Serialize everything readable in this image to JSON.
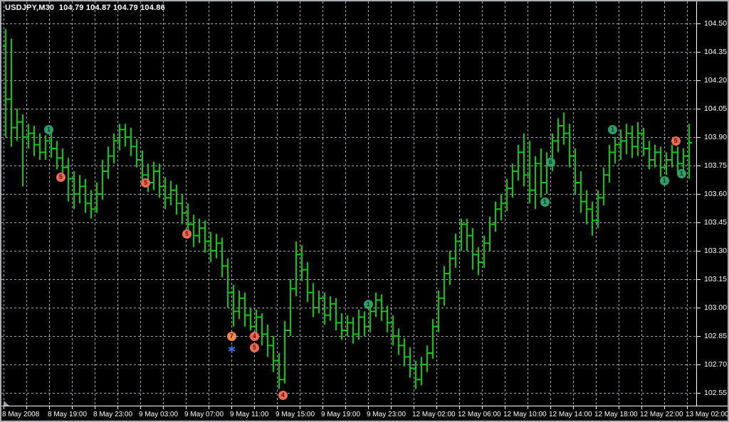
{
  "header": {
    "title": "USDJPY,M30  104.79 104.87 104.79 104.86",
    "symbol_period": "USDJPY,M30"
  },
  "colors": {
    "background": "#000000",
    "grid": "#a0a6b0",
    "bar": "#00cc00",
    "axis_line": "#ffffff",
    "axis_text": "#ffffff",
    "window_border": "#a9adb3",
    "buy_fill": "#2f9e6b",
    "buy_text": "#00371d",
    "sell_fill": "#ed6a55",
    "sell_orange_fill": "#f0884f",
    "sell_text": "#5f140b",
    "star": "#4169e1",
    "triangle": "#97a1ad"
  },
  "chart_data": {
    "type": "ohlc_bars",
    "symbol": "USDJPY",
    "period": "M30",
    "title": "USDJPY,M30",
    "current_bar_quote": {
      "open": 104.79,
      "high": 104.87,
      "low": 104.79,
      "close": 104.86
    },
    "grid": true,
    "y_axis": {
      "labels": [
        "104.50",
        "104.35",
        "104.20",
        "104.05",
        "103.90",
        "103.75",
        "103.60",
        "103.45",
        "103.30",
        "103.15",
        "103.00",
        "102.85",
        "102.70",
        "102.55"
      ],
      "max": 104.5,
      "min": 102.55,
      "step": 0.15,
      "side": "right"
    },
    "x_axis": {
      "labels": [
        "8 May 2008",
        "8 May 19:00",
        "8 May 23:00",
        "9 May 03:00",
        "9 May 07:00",
        "9 May 11:00",
        "9 May 15:00",
        "9 May 19:00",
        "9 May 23:00",
        "12 May 02:00",
        "12 May 06:00",
        "12 May 10:00",
        "12 May 14:00",
        "12 May 18:00",
        "12 May 22:00",
        "13 May 02:00"
      ],
      "side": "bottom"
    },
    "bars": [
      [
        104.38,
        104.47,
        103.9,
        104.1
      ],
      [
        104.1,
        104.42,
        103.85,
        103.95
      ],
      [
        103.95,
        104.05,
        103.88,
        103.98
      ],
      [
        103.98,
        104.02,
        103.64,
        103.9
      ],
      [
        103.9,
        103.97,
        103.84,
        103.92
      ],
      [
        103.92,
        103.96,
        103.8,
        103.86
      ],
      [
        103.86,
        103.92,
        103.78,
        103.82
      ],
      [
        103.82,
        103.91,
        103.78,
        103.88
      ],
      [
        103.88,
        103.92,
        103.79,
        103.84
      ],
      [
        103.84,
        103.88,
        103.73,
        103.79
      ],
      [
        103.79,
        103.84,
        103.67,
        103.74
      ],
      [
        103.74,
        103.79,
        103.56,
        103.68
      ],
      [
        103.68,
        103.72,
        103.52,
        103.6
      ],
      [
        103.6,
        103.7,
        103.55,
        103.64
      ],
      [
        103.64,
        103.68,
        103.5,
        103.55
      ],
      [
        103.55,
        103.62,
        103.47,
        103.52
      ],
      [
        103.52,
        103.66,
        103.5,
        103.6
      ],
      [
        103.6,
        103.78,
        103.57,
        103.72
      ],
      [
        103.72,
        103.85,
        103.68,
        103.8
      ],
      [
        103.8,
        103.92,
        103.76,
        103.88
      ],
      [
        103.88,
        103.97,
        103.83,
        103.94
      ],
      [
        103.94,
        103.97,
        103.85,
        103.9
      ],
      [
        103.9,
        103.95,
        103.8,
        103.85
      ],
      [
        103.85,
        103.89,
        103.74,
        103.78
      ],
      [
        103.78,
        103.83,
        103.66,
        103.7
      ],
      [
        103.7,
        103.76,
        103.61,
        103.66
      ],
      [
        103.66,
        103.77,
        103.62,
        103.72
      ],
      [
        103.72,
        103.76,
        103.58,
        103.64
      ],
      [
        103.64,
        103.69,
        103.52,
        103.58
      ],
      [
        103.58,
        103.67,
        103.54,
        103.62
      ],
      [
        103.62,
        103.65,
        103.49,
        103.55
      ],
      [
        103.55,
        103.6,
        103.44,
        103.5
      ],
      [
        103.5,
        103.55,
        103.38,
        103.44
      ],
      [
        103.44,
        103.49,
        103.32,
        103.38
      ],
      [
        103.38,
        103.47,
        103.34,
        103.42
      ],
      [
        103.42,
        103.46,
        103.29,
        103.35
      ],
      [
        103.35,
        103.4,
        103.24,
        103.3
      ],
      [
        103.3,
        103.39,
        103.26,
        103.34
      ],
      [
        103.34,
        103.37,
        103.16,
        103.22
      ],
      [
        103.22,
        103.26,
        103.0,
        103.08
      ],
      [
        103.08,
        103.12,
        102.9,
        102.98
      ],
      [
        102.98,
        103.09,
        102.94,
        103.05
      ],
      [
        103.05,
        103.08,
        102.9,
        102.96
      ],
      [
        102.96,
        103.0,
        102.88,
        102.9
      ],
      [
        102.9,
        102.99,
        102.86,
        102.95
      ],
      [
        102.95,
        102.97,
        102.8,
        102.86
      ],
      [
        102.86,
        102.91,
        102.74,
        102.8
      ],
      [
        102.8,
        102.85,
        102.66,
        102.72
      ],
      [
        102.72,
        102.76,
        102.57,
        102.62
      ],
      [
        102.62,
        102.93,
        102.6,
        102.88
      ],
      [
        102.88,
        103.15,
        102.85,
        103.1
      ],
      [
        103.1,
        103.35,
        103.06,
        103.28
      ],
      [
        103.28,
        103.33,
        103.14,
        103.2
      ],
      [
        103.2,
        103.24,
        103.03,
        103.08
      ],
      [
        103.08,
        103.13,
        102.95,
        103.0
      ],
      [
        103.0,
        103.09,
        102.97,
        103.05
      ],
      [
        103.05,
        103.08,
        102.91,
        102.96
      ],
      [
        102.96,
        103.06,
        102.93,
        103.02
      ],
      [
        103.02,
        103.05,
        102.88,
        102.92
      ],
      [
        102.92,
        102.97,
        102.83,
        102.88
      ],
      [
        102.88,
        102.96,
        102.85,
        102.92
      ],
      [
        102.92,
        102.95,
        102.81,
        102.86
      ],
      [
        102.86,
        102.99,
        102.83,
        102.95
      ],
      [
        102.95,
        102.98,
        102.85,
        102.9
      ],
      [
        102.9,
        103.02,
        102.87,
        102.98
      ],
      [
        102.98,
        103.08,
        102.95,
        103.04
      ],
      [
        103.04,
        103.07,
        102.93,
        102.98
      ],
      [
        102.98,
        103.01,
        102.87,
        102.92
      ],
      [
        102.92,
        102.96,
        102.8,
        102.85
      ],
      [
        102.85,
        102.89,
        102.75,
        102.8
      ],
      [
        102.8,
        102.84,
        102.69,
        102.74
      ],
      [
        102.74,
        102.79,
        102.63,
        102.68
      ],
      [
        102.68,
        102.72,
        102.57,
        102.62
      ],
      [
        102.62,
        102.74,
        102.59,
        102.7
      ],
      [
        102.7,
        102.8,
        102.66,
        102.76
      ],
      [
        102.76,
        102.94,
        102.73,
        102.9
      ],
      [
        102.9,
        103.09,
        102.87,
        103.05
      ],
      [
        103.05,
        103.22,
        103.01,
        103.18
      ],
      [
        103.18,
        103.3,
        103.12,
        103.26
      ],
      [
        103.26,
        103.39,
        103.21,
        103.35
      ],
      [
        103.35,
        103.47,
        103.3,
        103.44
      ],
      [
        103.44,
        103.47,
        103.3,
        103.38
      ],
      [
        103.38,
        103.42,
        103.2,
        103.28
      ],
      [
        103.28,
        103.32,
        103.17,
        103.24
      ],
      [
        103.24,
        103.38,
        103.21,
        103.34
      ],
      [
        103.34,
        103.48,
        103.3,
        103.44
      ],
      [
        103.44,
        103.56,
        103.4,
        103.52
      ],
      [
        103.52,
        103.6,
        103.46,
        103.55
      ],
      [
        103.55,
        103.68,
        103.51,
        103.63
      ],
      [
        103.63,
        103.76,
        103.58,
        103.72
      ],
      [
        103.72,
        103.86,
        103.67,
        103.82
      ],
      [
        103.82,
        103.92,
        103.64,
        103.7
      ],
      [
        103.7,
        103.88,
        103.55,
        103.62
      ],
      [
        103.62,
        103.8,
        103.52,
        103.76
      ],
      [
        103.76,
        103.84,
        103.58,
        103.66
      ],
      [
        103.66,
        103.82,
        103.6,
        103.78
      ],
      [
        103.78,
        103.92,
        103.72,
        103.88
      ],
      [
        103.88,
        104.0,
        103.82,
        103.96
      ],
      [
        103.96,
        104.03,
        103.86,
        103.92
      ],
      [
        103.92,
        103.97,
        103.74,
        103.8
      ],
      [
        103.8,
        103.84,
        103.6,
        103.66
      ],
      [
        103.66,
        103.72,
        103.5,
        103.56
      ],
      [
        103.56,
        103.62,
        103.44,
        103.52
      ],
      [
        103.52,
        103.56,
        103.38,
        103.46
      ],
      [
        103.46,
        103.62,
        103.42,
        103.58
      ],
      [
        103.58,
        103.74,
        103.54,
        103.7
      ],
      [
        103.7,
        103.86,
        103.66,
        103.82
      ],
      [
        103.82,
        103.9,
        103.76,
        103.86
      ],
      [
        103.86,
        103.94,
        103.78,
        103.88
      ],
      [
        103.88,
        103.97,
        103.81,
        103.92
      ],
      [
        103.92,
        103.96,
        103.79,
        103.85
      ],
      [
        103.85,
        103.98,
        103.8,
        103.92
      ],
      [
        103.92,
        103.95,
        103.8,
        103.84
      ],
      [
        103.84,
        103.88,
        103.73,
        103.78
      ],
      [
        103.78,
        103.86,
        103.74,
        103.82
      ],
      [
        103.82,
        103.85,
        103.69,
        103.74
      ],
      [
        103.74,
        103.82,
        103.7,
        103.78
      ],
      [
        103.78,
        103.86,
        103.74,
        103.82
      ],
      [
        103.82,
        103.85,
        103.71,
        103.76
      ],
      [
        103.76,
        103.84,
        103.72,
        103.8
      ],
      [
        103.8,
        103.97,
        103.68,
        103.87
      ]
    ],
    "markers": [
      {
        "type": "buy",
        "label": "1",
        "bar": 7.5,
        "price": 103.94
      },
      {
        "type": "sell",
        "label": "5",
        "bar": 9.6,
        "price": 103.69
      },
      {
        "type": "sell",
        "label": "5",
        "bar": 24.5,
        "price": 103.66
      },
      {
        "type": "sell",
        "label": "5",
        "bar": 31.75,
        "price": 103.39
      },
      {
        "type": "sell_orange",
        "label": "7",
        "bar": 39.6,
        "price": 102.85
      },
      {
        "type": "star",
        "label": "*",
        "bar": 39.6,
        "price": 102.79
      },
      {
        "type": "sell",
        "label": "4",
        "bar": 43.6,
        "price": 102.85
      },
      {
        "type": "sell",
        "label": "5",
        "bar": 43.6,
        "price": 102.79
      },
      {
        "type": "sell",
        "label": "4",
        "bar": 48.6,
        "price": 102.54
      },
      {
        "type": "buy",
        "label": "1",
        "bar": 63.6,
        "price": 103.02
      },
      {
        "type": "buy",
        "label": "1",
        "bar": 94.6,
        "price": 103.56
      },
      {
        "type": "buy",
        "label": "6",
        "bar": 95.6,
        "price": 103.77
      },
      {
        "type": "buy",
        "label": "1",
        "bar": 106.5,
        "price": 103.94
      },
      {
        "type": "buy",
        "label": "1",
        "bar": 115.6,
        "price": 103.67
      },
      {
        "type": "sell",
        "label": "5",
        "bar": 117.6,
        "price": 103.88
      },
      {
        "type": "buy",
        "label": "1",
        "bar": 118.6,
        "price": 103.71
      }
    ]
  }
}
